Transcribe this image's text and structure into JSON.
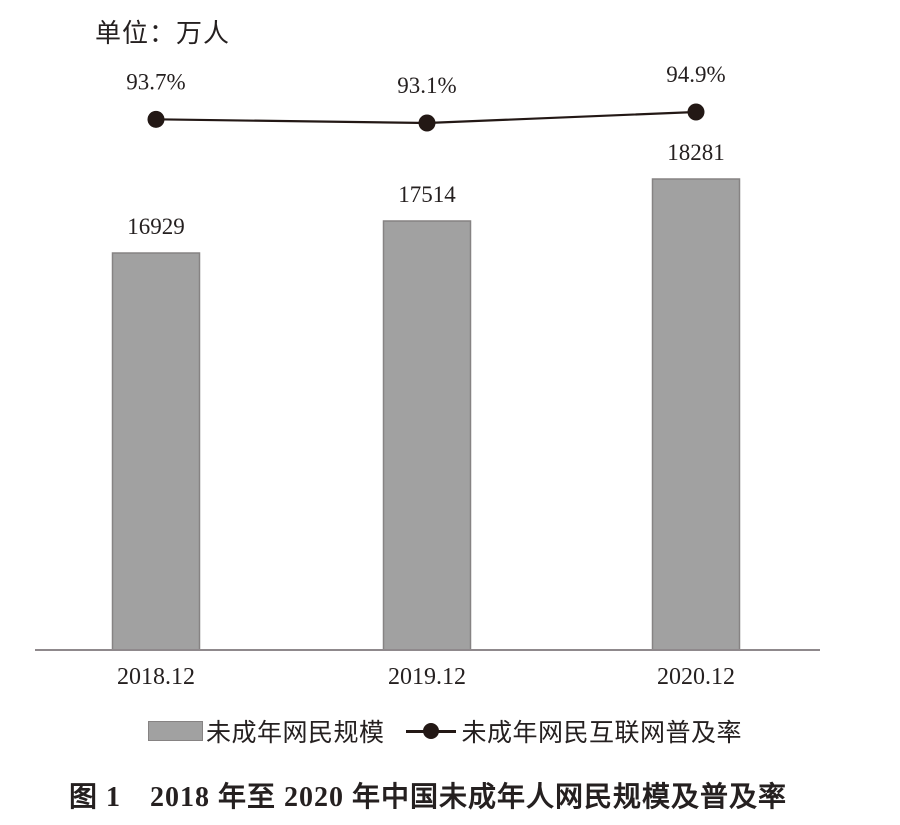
{
  "unit_label": "单位：万人",
  "chart_data": {
    "type": "bar+line",
    "title": "图 1　2018 年至 2020 年中国未成年人网民规模及普及率",
    "categories": [
      "2018.12",
      "2019.12",
      "2020.12"
    ],
    "series": [
      {
        "name": "未成年网民规模",
        "type": "bar",
        "unit": "万人",
        "values": [
          16929,
          17514,
          18281
        ],
        "value_labels": [
          "16929",
          "17514",
          "18281"
        ]
      },
      {
        "name": "未成年网民互联网普及率",
        "type": "line",
        "unit": "%",
        "values": [
          93.7,
          93.1,
          94.9
        ],
        "value_labels": [
          "93.7%",
          "93.1%",
          "94.9%"
        ]
      }
    ],
    "legend_position": "bottom",
    "grid": false,
    "axes": {
      "x_ticks": [
        "2018.12",
        "2019.12",
        "2020.12"
      ],
      "y_axis_visible": false
    }
  },
  "caption": "图 1　2018 年至 2020 年中国未成年人网民规模及普及率",
  "colors": {
    "bar_fill": "#a1a1a1",
    "bar_border": "#868383",
    "line": "#231815",
    "marker": "#231815",
    "text": "#252020",
    "axis": "#8f898c",
    "background": "#ffffff"
  }
}
